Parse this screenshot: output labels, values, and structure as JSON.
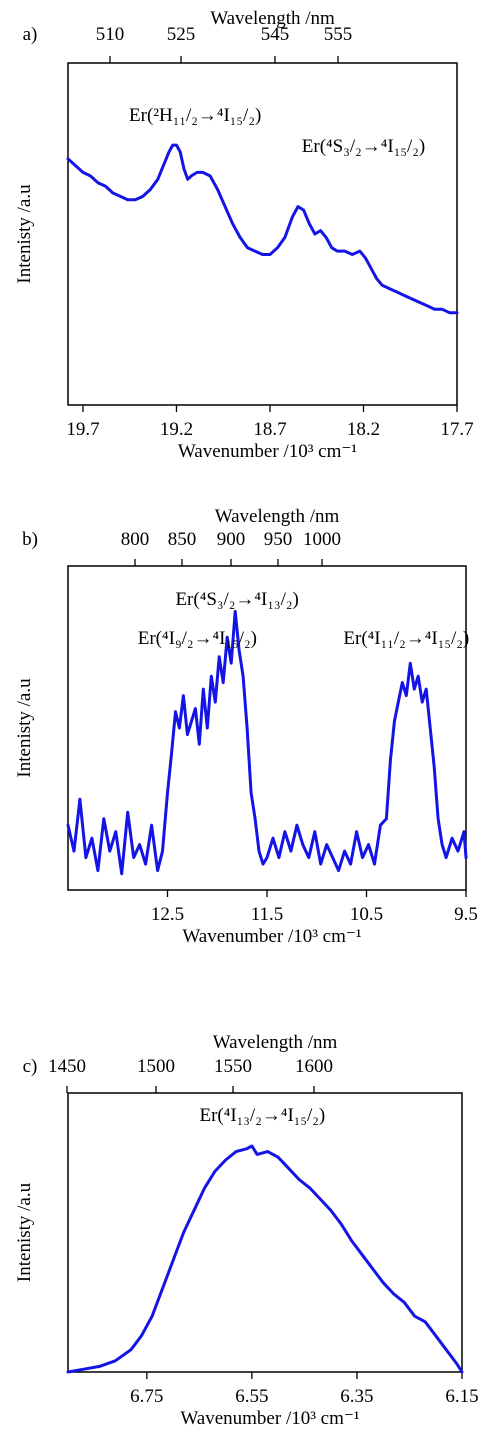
{
  "chart_data": [
    {
      "type": "line",
      "panel_label": "a)",
      "top_axis_title": "Wavelength /nm",
      "top_ticks": [
        "510",
        "525",
        "545",
        "555"
      ],
      "bottom_axis_title": "Wavenumber /10³ cm⁻¹",
      "bottom_ticks": [
        19.7,
        19.2,
        18.7,
        18.2,
        17.7
      ],
      "x_range": [
        19.78,
        17.7
      ],
      "y_range": [
        0,
        1
      ],
      "ylabel": "Intenisty /a.u",
      "annotations": [
        {
          "text": "Er(²H₁₁/₂→⁴I₁₅/₂)",
          "x": 19.1,
          "y": 0.83
        },
        {
          "text": "Er(⁴S₃/₂→⁴I₁₅/₂)",
          "x": 18.2,
          "y": 0.74
        }
      ],
      "series": [
        {
          "x": [
            19.78,
            19.74,
            19.7,
            19.66,
            19.62,
            19.58,
            19.54,
            19.5,
            19.46,
            19.42,
            19.38,
            19.34,
            19.3,
            19.27,
            19.24,
            19.22,
            19.2,
            19.18,
            19.16,
            19.14,
            19.12,
            19.09,
            19.06,
            19.02,
            18.98,
            18.94,
            18.9,
            18.86,
            18.82,
            18.78,
            18.74,
            18.7,
            18.66,
            18.62,
            18.58,
            18.55,
            18.52,
            18.49,
            18.46,
            18.43,
            18.4,
            18.37,
            18.34,
            18.3,
            18.26,
            18.22,
            18.19,
            18.16,
            18.13,
            18.1,
            18.06,
            18.02,
            17.98,
            17.94,
            17.9,
            17.86,
            17.82,
            17.78,
            17.74,
            17.7
          ],
          "y": [
            0.72,
            0.7,
            0.68,
            0.67,
            0.65,
            0.64,
            0.62,
            0.61,
            0.6,
            0.6,
            0.61,
            0.63,
            0.66,
            0.7,
            0.74,
            0.76,
            0.76,
            0.74,
            0.69,
            0.66,
            0.67,
            0.68,
            0.68,
            0.67,
            0.63,
            0.58,
            0.53,
            0.49,
            0.46,
            0.45,
            0.44,
            0.44,
            0.46,
            0.49,
            0.55,
            0.58,
            0.57,
            0.53,
            0.5,
            0.51,
            0.49,
            0.46,
            0.45,
            0.45,
            0.44,
            0.45,
            0.43,
            0.4,
            0.37,
            0.35,
            0.34,
            0.33,
            0.32,
            0.31,
            0.3,
            0.29,
            0.28,
            0.28,
            0.27,
            0.27
          ]
        }
      ]
    },
    {
      "type": "line",
      "panel_label": "b)",
      "top_axis_title": "Wavelength /nm",
      "top_ticks": [
        "800",
        "850",
        "900",
        "950",
        "1000"
      ],
      "bottom_axis_title": "Wavenumber /10³ cm⁻¹",
      "bottom_ticks": [
        12.5,
        11.5,
        10.5,
        9.5
      ],
      "x_range": [
        13.5,
        9.5
      ],
      "y_range": [
        0,
        1
      ],
      "ylabel": "Intenisty /a.u",
      "annotations": [
        {
          "text": "Er(⁴S₃/₂→⁴I₁₃/₂)",
          "x": 11.8,
          "y": 0.88
        },
        {
          "text": "Er(⁴I₉/₂→⁴I₁₅/₂)",
          "x": 12.2,
          "y": 0.76
        },
        {
          "text": "Er(⁴I₁₁/₂→⁴I₁₅/₂)",
          "x": 10.1,
          "y": 0.76
        }
      ],
      "series": [
        {
          "x": [
            13.5,
            13.44,
            13.38,
            13.32,
            13.26,
            13.2,
            13.14,
            13.08,
            13.02,
            12.96,
            12.9,
            12.84,
            12.78,
            12.72,
            12.66,
            12.6,
            12.55,
            12.5,
            12.46,
            12.42,
            12.38,
            12.34,
            12.3,
            12.26,
            12.22,
            12.18,
            12.14,
            12.1,
            12.06,
            12.02,
            11.98,
            11.94,
            11.9,
            11.86,
            11.82,
            11.78,
            11.74,
            11.7,
            11.66,
            11.62,
            11.58,
            11.54,
            11.5,
            11.44,
            11.38,
            11.32,
            11.26,
            11.2,
            11.14,
            11.08,
            11.02,
            10.96,
            10.9,
            10.84,
            10.78,
            10.72,
            10.66,
            10.6,
            10.54,
            10.48,
            10.42,
            10.36,
            10.3,
            10.26,
            10.22,
            10.18,
            10.14,
            10.1,
            10.06,
            10.02,
            9.98,
            9.94,
            9.9,
            9.86,
            9.82,
            9.78,
            9.74,
            9.7,
            9.64,
            9.58,
            9.52,
            9.5
          ],
          "y": [
            0.2,
            0.12,
            0.28,
            0.1,
            0.16,
            0.06,
            0.22,
            0.12,
            0.18,
            0.05,
            0.24,
            0.1,
            0.14,
            0.08,
            0.2,
            0.06,
            0.12,
            0.3,
            0.42,
            0.55,
            0.5,
            0.6,
            0.48,
            0.52,
            0.56,
            0.45,
            0.62,
            0.5,
            0.66,
            0.58,
            0.72,
            0.64,
            0.78,
            0.7,
            0.86,
            0.74,
            0.66,
            0.5,
            0.3,
            0.22,
            0.12,
            0.08,
            0.1,
            0.16,
            0.1,
            0.18,
            0.12,
            0.2,
            0.14,
            0.1,
            0.18,
            0.08,
            0.14,
            0.1,
            0.06,
            0.12,
            0.08,
            0.18,
            0.1,
            0.14,
            0.08,
            0.2,
            0.22,
            0.4,
            0.52,
            0.58,
            0.64,
            0.6,
            0.7,
            0.62,
            0.66,
            0.58,
            0.62,
            0.5,
            0.38,
            0.22,
            0.14,
            0.1,
            0.16,
            0.12,
            0.18,
            0.1
          ]
        }
      ]
    },
    {
      "type": "line",
      "panel_label": "c)",
      "top_axis_title": "Wavelength /nm",
      "top_ticks": [
        "1450",
        "1500",
        "1550",
        "1600"
      ],
      "bottom_axis_title": "Wavenumber /10³ cm⁻¹",
      "bottom_ticks": [
        6.75,
        6.55,
        6.35,
        6.15
      ],
      "x_range": [
        6.9,
        6.15
      ],
      "y_range": [
        0,
        1
      ],
      "ylabel": "Intenisty /a.u",
      "annotations": [
        {
          "text": "Er(⁴I₁₃/₂→⁴I₁₅/₂)",
          "x": 6.53,
          "y": 0.9
        }
      ],
      "series": [
        {
          "x": [
            6.9,
            6.87,
            6.84,
            6.81,
            6.78,
            6.76,
            6.74,
            6.72,
            6.7,
            6.68,
            6.66,
            6.64,
            6.62,
            6.6,
            6.58,
            6.56,
            6.55,
            6.54,
            6.52,
            6.5,
            6.48,
            6.46,
            6.44,
            6.42,
            6.4,
            6.38,
            6.36,
            6.34,
            6.32,
            6.3,
            6.28,
            6.26,
            6.24,
            6.22,
            6.2,
            6.18,
            6.16,
            6.15
          ],
          "y": [
            0.0,
            0.01,
            0.02,
            0.04,
            0.08,
            0.13,
            0.2,
            0.3,
            0.4,
            0.5,
            0.58,
            0.66,
            0.72,
            0.76,
            0.79,
            0.8,
            0.81,
            0.78,
            0.79,
            0.77,
            0.73,
            0.69,
            0.66,
            0.62,
            0.58,
            0.53,
            0.47,
            0.42,
            0.37,
            0.32,
            0.28,
            0.25,
            0.2,
            0.18,
            0.13,
            0.08,
            0.03,
            0.0
          ]
        }
      ]
    }
  ]
}
